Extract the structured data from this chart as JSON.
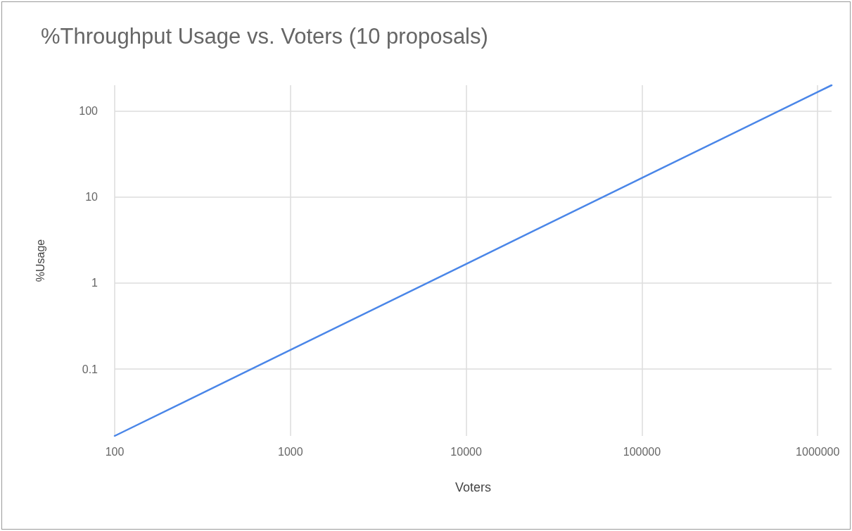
{
  "chart_data": {
    "type": "line",
    "title": "%Throughput Usage vs. Voters (10 proposals)",
    "xlabel": "Voters",
    "ylabel": "%Usage",
    "x": [
      100,
      1000,
      10000,
      100000,
      1000000,
      1200000
    ],
    "series": [
      {
        "color": "#4a86e8",
        "values": [
          0.0167,
          0.167,
          1.67,
          16.7,
          167,
          200
        ]
      }
    ],
    "log": "xy",
    "xlim": [
      100,
      1200000
    ],
    "xticks": [
      100,
      1000,
      10000,
      100000,
      1000000
    ],
    "ylim": [
      0.0167,
      200
    ],
    "yticks": [
      0.1,
      1,
      10,
      100
    ],
    "grid": true,
    "marker": "none",
    "line_style": "solid"
  }
}
